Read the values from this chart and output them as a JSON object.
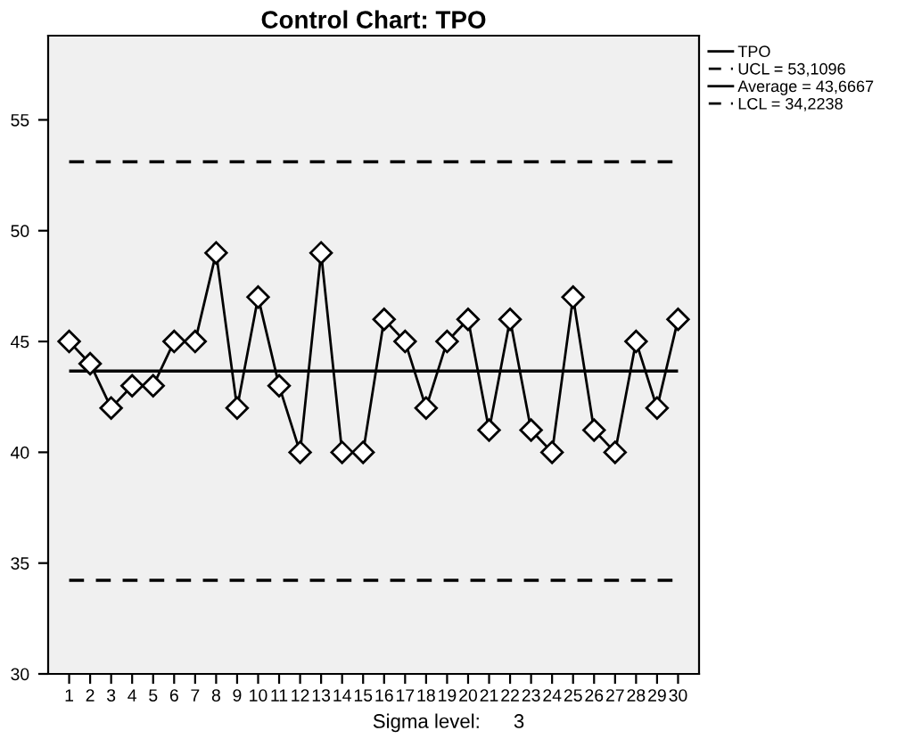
{
  "chart_data": {
    "type": "line",
    "title": "Control Chart: TPO",
    "categories": [
      "1",
      "2",
      "3",
      "4",
      "5",
      "6",
      "7",
      "8",
      "9",
      "10",
      "11",
      "12",
      "13",
      "14",
      "15",
      "16",
      "17",
      "18",
      "19",
      "20",
      "21",
      "22",
      "23",
      "24",
      "25",
      "26",
      "27",
      "28",
      "29",
      "30"
    ],
    "series": [
      {
        "name": "TPO",
        "color": "#000000",
        "values": [
          45,
          44,
          42,
          43,
          43,
          45,
          45,
          49,
          42,
          47,
          43,
          40,
          49,
          40,
          40,
          46,
          45,
          42,
          45,
          46,
          41,
          46,
          41,
          40,
          47,
          41,
          40,
          45,
          42,
          46
        ]
      }
    ],
    "ref_lines": [
      {
        "axis": "y",
        "value": 53.1096,
        "label": "UCL = 53,1096",
        "color": "#000000",
        "line_style": "dashed"
      },
      {
        "axis": "y",
        "value": 43.6667,
        "label": "Average = 43,6667",
        "color": "#000000",
        "line_style": "solid"
      },
      {
        "axis": "y",
        "value": 34.2238,
        "label": "LCL = 34,2238",
        "color": "#000000",
        "line_style": "dashed"
      }
    ],
    "ylim": [
      30,
      58.8
    ],
    "yticks": [
      30,
      35,
      40,
      45,
      50,
      55
    ],
    "annotations": [
      "Sigma level:      3"
    ],
    "marker": "diamond",
    "line_style": "solid",
    "grid": false,
    "legend": "top right"
  }
}
